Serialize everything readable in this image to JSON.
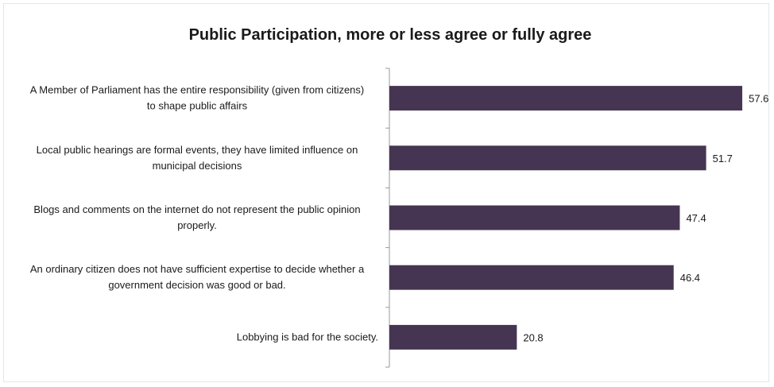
{
  "chart_data": {
    "type": "bar",
    "orientation": "horizontal",
    "title": "Public Participation, more or less agree or fully agree",
    "xlabel": "",
    "ylabel": "",
    "categories": [
      [
        "A Member of Parliament has the entire responsibility (given from citizens)",
        "to shape public affairs"
      ],
      [
        "Local public hearings are formal events, they have limited influence on",
        "municipal decisions"
      ],
      [
        "Blogs and comments on the internet do not represent the public opinion",
        "properly."
      ],
      [
        "An ordinary citizen does not have sufficient expertise to decide whether a",
        "government decision was good or bad."
      ],
      [
        "Lobbying is bad for the society."
      ]
    ],
    "values": [
      57.6,
      51.7,
      47.4,
      46.4,
      20.8
    ],
    "value_labels": [
      "57.6",
      "51.7",
      "47.4",
      "46.4",
      "20.8"
    ],
    "xlim": [
      0,
      60
    ],
    "bar_color": "#453552",
    "grid": false,
    "legend": "none"
  }
}
